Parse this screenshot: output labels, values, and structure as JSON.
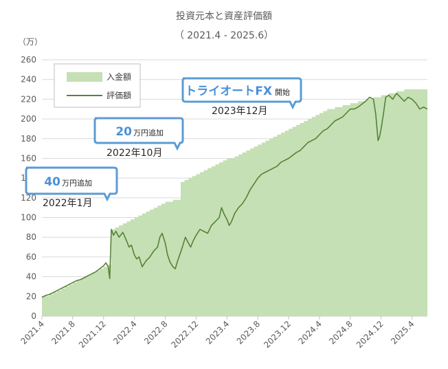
{
  "chart_data": {
    "type": "area",
    "title": "投資元本と資産評価額",
    "subtitle": "（ 2021.4 - 2025.6）",
    "ylabel": "（万）",
    "xlabel": "",
    "ylim": [
      0,
      260
    ],
    "yticks": [
      0,
      20,
      40,
      60,
      80,
      100,
      120,
      140,
      160,
      180,
      200,
      220,
      240,
      260
    ],
    "xticks": [
      "2021.4",
      "2021.8",
      "2021.12",
      "2022.4",
      "2022.8",
      "2022.12",
      "2023.4",
      "2023.8",
      "2023.12",
      "2024.4",
      "2024.8",
      "2024.12",
      "2025.4"
    ],
    "xlim_months": 50,
    "grid": true,
    "legend_position": "top-left",
    "colors": {
      "principal_fill": "#c5e0b4",
      "valuation_line": "#548235",
      "grid": "#d9d9d9",
      "callout_border": "#5b9bd5",
      "callout_accent": "#4a90d9"
    },
    "series": [
      {
        "name": "入金額",
        "kind": "area",
        "points": [
          [
            0,
            20
          ],
          [
            1,
            22
          ],
          [
            1.5,
            24
          ],
          [
            2,
            26
          ],
          [
            2.5,
            28
          ],
          [
            3,
            30
          ],
          [
            3.5,
            32
          ],
          [
            4,
            34
          ],
          [
            4.5,
            36
          ],
          [
            5,
            38
          ],
          [
            5.5,
            40
          ],
          [
            6,
            42
          ],
          [
            6.5,
            44
          ],
          [
            7,
            46
          ],
          [
            7.5,
            48
          ],
          [
            8,
            50
          ],
          [
            8.5,
            52
          ],
          [
            9,
            88
          ],
          [
            9.5,
            90
          ],
          [
            10,
            92
          ],
          [
            10.5,
            94
          ],
          [
            11,
            96
          ],
          [
            11.5,
            98
          ],
          [
            12,
            100
          ],
          [
            12.5,
            102
          ],
          [
            13,
            104
          ],
          [
            13.5,
            106
          ],
          [
            14,
            108
          ],
          [
            14.5,
            110
          ],
          [
            15,
            112
          ],
          [
            15.5,
            114
          ],
          [
            16,
            116
          ],
          [
            17,
            118
          ],
          [
            18,
            136
          ],
          [
            18.5,
            138
          ],
          [
            19,
            140
          ],
          [
            19.5,
            142
          ],
          [
            20,
            144
          ],
          [
            20.5,
            146
          ],
          [
            21,
            148
          ],
          [
            21.5,
            150
          ],
          [
            22,
            152
          ],
          [
            22.5,
            154
          ],
          [
            23,
            156
          ],
          [
            23.5,
            158
          ],
          [
            24,
            160
          ],
          [
            25,
            162
          ],
          [
            25.5,
            164
          ],
          [
            26,
            166
          ],
          [
            26.5,
            168
          ],
          [
            27,
            170
          ],
          [
            27.5,
            172
          ],
          [
            28,
            174
          ],
          [
            28.5,
            176
          ],
          [
            29,
            178
          ],
          [
            29.5,
            180
          ],
          [
            30,
            182
          ],
          [
            30.5,
            184
          ],
          [
            31,
            186
          ],
          [
            31.5,
            188
          ],
          [
            32,
            190
          ],
          [
            32.5,
            192
          ],
          [
            33,
            194
          ],
          [
            33.5,
            196
          ],
          [
            34,
            198
          ],
          [
            34.5,
            200
          ],
          [
            35,
            202
          ],
          [
            35.5,
            204
          ],
          [
            36,
            206
          ],
          [
            36.5,
            208
          ],
          [
            37,
            210
          ],
          [
            38,
            212
          ],
          [
            39,
            214
          ],
          [
            40,
            216
          ],
          [
            41,
            218
          ],
          [
            42,
            220
          ],
          [
            43,
            222
          ],
          [
            44,
            224
          ],
          [
            45,
            226
          ],
          [
            46,
            228
          ],
          [
            47,
            230
          ],
          [
            50,
            230
          ]
        ]
      },
      {
        "name": "評価額",
        "kind": "line",
        "points": [
          [
            0,
            19
          ],
          [
            0.5,
            21
          ],
          [
            1,
            22
          ],
          [
            1.5,
            24
          ],
          [
            2,
            26
          ],
          [
            2.5,
            28
          ],
          [
            3,
            30
          ],
          [
            3.5,
            32
          ],
          [
            4,
            34
          ],
          [
            4.5,
            36
          ],
          [
            5,
            37
          ],
          [
            5.5,
            39
          ],
          [
            6,
            41
          ],
          [
            6.5,
            43
          ],
          [
            7,
            45
          ],
          [
            7.5,
            48
          ],
          [
            8,
            51
          ],
          [
            8.3,
            54
          ],
          [
            8.6,
            50
          ],
          [
            8.8,
            38
          ],
          [
            9,
            88
          ],
          [
            9.3,
            82
          ],
          [
            9.6,
            86
          ],
          [
            10,
            80
          ],
          [
            10.5,
            85
          ],
          [
            11,
            76
          ],
          [
            11.3,
            70
          ],
          [
            11.6,
            72
          ],
          [
            12,
            62
          ],
          [
            12.3,
            58
          ],
          [
            12.6,
            60
          ],
          [
            13,
            50
          ],
          [
            13.5,
            56
          ],
          [
            14,
            60
          ],
          [
            14.5,
            66
          ],
          [
            15,
            70
          ],
          [
            15.3,
            80
          ],
          [
            15.6,
            84
          ],
          [
            16,
            74
          ],
          [
            16.3,
            62
          ],
          [
            16.6,
            55
          ],
          [
            17,
            50
          ],
          [
            17.3,
            48
          ],
          [
            17.6,
            56
          ],
          [
            18,
            65
          ],
          [
            18.3,
            72
          ],
          [
            18.6,
            80
          ],
          [
            19,
            74
          ],
          [
            19.3,
            70
          ],
          [
            19.6,
            76
          ],
          [
            20,
            82
          ],
          [
            20.5,
            88
          ],
          [
            21,
            86
          ],
          [
            21.5,
            84
          ],
          [
            22,
            92
          ],
          [
            22.5,
            96
          ],
          [
            23,
            100
          ],
          [
            23.3,
            110
          ],
          [
            23.6,
            104
          ],
          [
            24,
            98
          ],
          [
            24.3,
            92
          ],
          [
            24.6,
            96
          ],
          [
            25,
            104
          ],
          [
            25.5,
            110
          ],
          [
            26,
            114
          ],
          [
            26.5,
            120
          ],
          [
            27,
            128
          ],
          [
            27.5,
            134
          ],
          [
            28,
            140
          ],
          [
            28.5,
            144
          ],
          [
            29,
            146
          ],
          [
            29.5,
            148
          ],
          [
            30,
            150
          ],
          [
            30.5,
            152
          ],
          [
            31,
            156
          ],
          [
            31.5,
            158
          ],
          [
            32,
            160
          ],
          [
            32.5,
            163
          ],
          [
            33,
            166
          ],
          [
            33.5,
            168
          ],
          [
            34,
            172
          ],
          [
            34.5,
            176
          ],
          [
            35,
            178
          ],
          [
            35.5,
            180
          ],
          [
            36,
            184
          ],
          [
            36.5,
            188
          ],
          [
            37,
            190
          ],
          [
            37.5,
            194
          ],
          [
            38,
            198
          ],
          [
            38.5,
            200
          ],
          [
            39,
            202
          ],
          [
            39.5,
            206
          ],
          [
            40,
            210
          ],
          [
            40.5,
            210
          ],
          [
            41,
            212
          ],
          [
            41.5,
            215
          ],
          [
            42,
            218
          ],
          [
            42.5,
            222
          ],
          [
            43,
            220
          ],
          [
            43.3,
            205
          ],
          [
            43.6,
            178
          ],
          [
            43.8,
            182
          ],
          [
            44,
            190
          ],
          [
            44.3,
            205
          ],
          [
            44.6,
            222
          ],
          [
            45,
            224
          ],
          [
            45.5,
            220
          ],
          [
            46,
            226
          ],
          [
            46.5,
            222
          ],
          [
            47,
            218
          ],
          [
            47.5,
            222
          ],
          [
            48,
            220
          ],
          [
            48.5,
            216
          ],
          [
            49,
            210
          ],
          [
            49.5,
            212
          ],
          [
            50,
            210
          ]
        ]
      }
    ],
    "annotations": [
      {
        "big": "40",
        "small": "万円追加",
        "date": "2022年1月",
        "x_month": 9,
        "y": 100
      },
      {
        "big": "20",
        "small": "万円追加",
        "date": "2022年10月",
        "x_month": 18,
        "y": 136
      },
      {
        "big": "トライオートFX",
        "small": "開始",
        "date": "2023年12月",
        "x_month": 32.5,
        "y": 212
      }
    ]
  }
}
